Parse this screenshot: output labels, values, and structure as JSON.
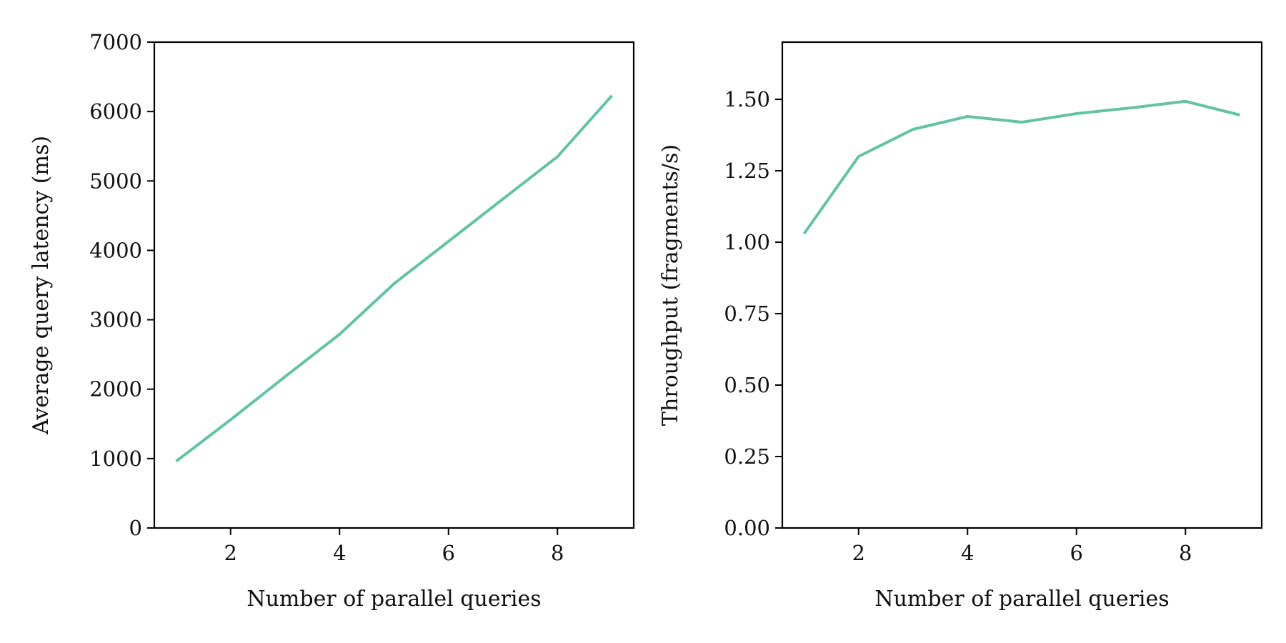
{
  "chart_data": [
    {
      "type": "line",
      "title": "",
      "xlabel": "Number of parallel queries",
      "ylabel": "Average query latency (ms)",
      "xlim": [
        0.6,
        9.4
      ],
      "ylim": [
        0,
        7000
      ],
      "xticks": [
        2,
        4,
        6,
        8
      ],
      "xtick_labels": [
        "2",
        "4",
        "6",
        "8"
      ],
      "yticks": [
        0,
        1000,
        2000,
        3000,
        4000,
        5000,
        6000,
        7000
      ],
      "ytick_labels": [
        "0",
        "1000",
        "2000",
        "3000",
        "4000",
        "5000",
        "6000",
        "7000"
      ],
      "grid": false,
      "series": [
        {
          "color": "#66c2a5",
          "x": [
            1,
            2,
            3,
            4,
            5,
            6,
            7,
            8,
            9
          ],
          "y": [
            960,
            1560,
            2180,
            2790,
            3520,
            4130,
            4740,
            5350,
            6230
          ]
        }
      ]
    },
    {
      "type": "line",
      "title": "",
      "xlabel": "Number of parallel queries",
      "ylabel": "Throughput (fragments/s)",
      "xlim": [
        0.6,
        9.4
      ],
      "ylim": [
        0,
        1.7
      ],
      "xticks": [
        2,
        4,
        6,
        8
      ],
      "xtick_labels": [
        "2",
        "4",
        "6",
        "8"
      ],
      "yticks": [
        0,
        0.25,
        0.5,
        0.75,
        1.0,
        1.25,
        1.5
      ],
      "ytick_labels": [
        "0.00",
        "0.25",
        "0.50",
        "0.75",
        "1.00",
        "1.25",
        "1.50"
      ],
      "grid": false,
      "series": [
        {
          "color": "#66c2a5",
          "x": [
            1,
            2,
            3,
            4,
            5,
            6,
            7,
            8,
            9
          ],
          "y": [
            1.03,
            1.3,
            1.395,
            1.44,
            1.42,
            1.45,
            1.47,
            1.493,
            1.445
          ]
        }
      ]
    }
  ]
}
